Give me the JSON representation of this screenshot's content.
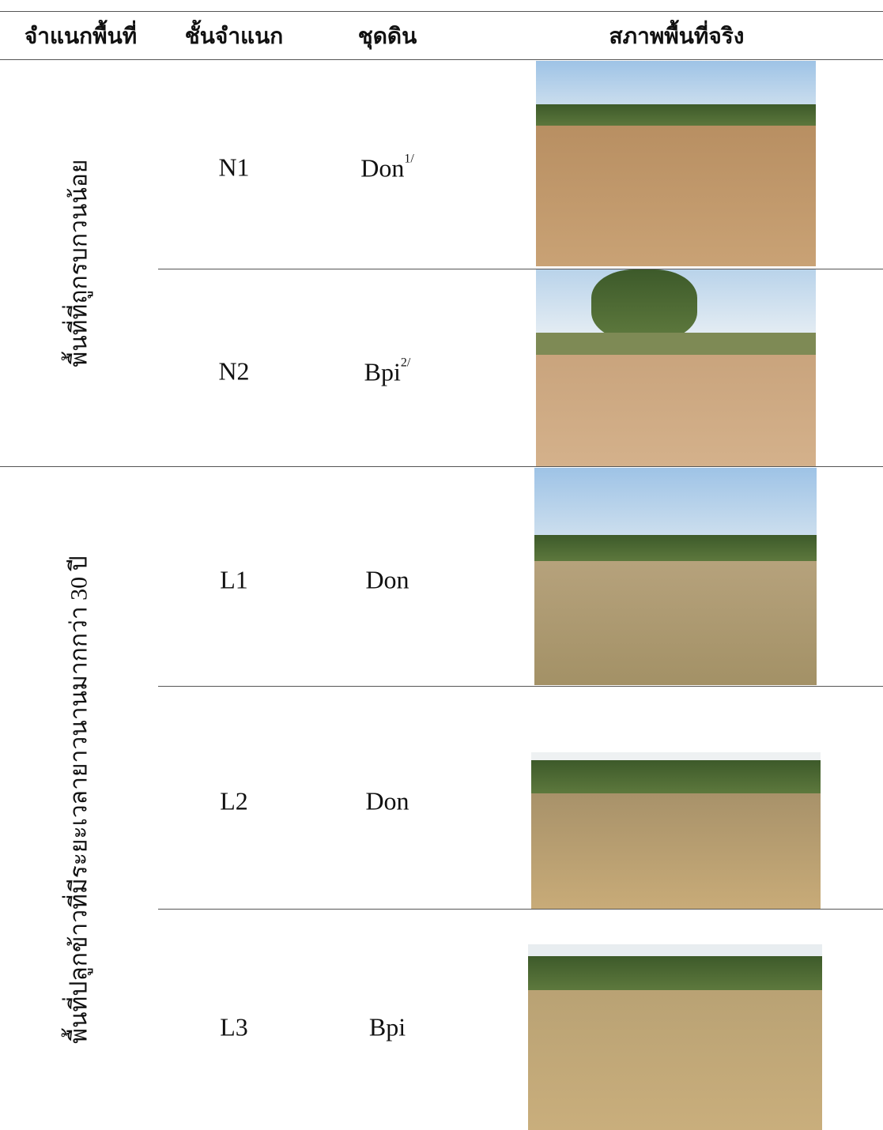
{
  "header": {
    "columns": [
      "จำแนกพื้นที่",
      "ชั้นจำแนก",
      "ชุดดิน",
      "สภาพพื้นที่จริง"
    ]
  },
  "groups": [
    {
      "label": "พื้นที่ที่ถูกรบกวนน้อย",
      "rows": [
        {
          "class": "N1",
          "soil": "Don",
          "note": "1/"
        },
        {
          "class": "N2",
          "soil": "Bpi",
          "note": "2/"
        }
      ]
    },
    {
      "label": "พื้นที่ปลูกข้าวที่มีระยะเวลายาวนานมากกว่า 30 ปี",
      "rows": [
        {
          "class": "L1",
          "soil": "Don"
        },
        {
          "class": "L2",
          "soil": "Don"
        },
        {
          "class": "L3",
          "soil": "Bpi"
        }
      ]
    }
  ]
}
